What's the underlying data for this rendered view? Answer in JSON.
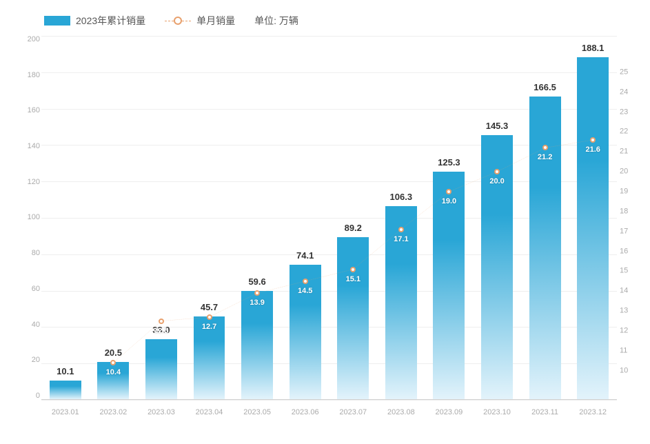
{
  "legend": {
    "series_bar_label": "2023年累计销量",
    "series_line_label": "单月销量",
    "unit_label": "单位: 万辆"
  },
  "chart": {
    "type": "bar+line",
    "background_color": "#ffffff",
    "grid_color": "#eeeeee",
    "axis_text_color": "#aaaaaa",
    "axis_fontsize": 11,
    "label_color": "#333333",
    "label_fontsize": 13,
    "bar_gradient_top": "#29a6d6",
    "bar_gradient_bottom": "#e3f3fb",
    "line_color": "#e8a06c",
    "line_dash": "4 4",
    "marker_fill": "#ffffff",
    "marker_stroke": "#e8a06c",
    "marker_radius": 4,
    "point_label_color": "#ffffff",
    "point_label_fontsize": 11,
    "bar_width_ratio": 0.66,
    "left_axis": {
      "min": 0,
      "max": 200,
      "step": 20
    },
    "right_axis": {
      "min": 10,
      "max": 25,
      "step": 1
    },
    "categories": [
      "2023.01",
      "2023.02",
      "2023.03",
      "2023.04",
      "2023.05",
      "2023.06",
      "2023.07",
      "2023.08",
      "2023.09",
      "2023.10",
      "2023.11",
      "2023.12"
    ],
    "bar_values": [
      10.1,
      20.5,
      33.0,
      45.7,
      59.6,
      74.1,
      89.2,
      106.3,
      125.3,
      145.3,
      166.5,
      188.1
    ],
    "bar_value_labels": [
      "10.1",
      "20.5",
      "33.0",
      "45.7",
      "59.6",
      "74.1",
      "89.2",
      "106.3",
      "125.3",
      "145.3",
      "166.5",
      "188.1"
    ],
    "line_values": [
      null,
      10.4,
      12.5,
      12.7,
      13.9,
      14.5,
      15.1,
      17.1,
      19.0,
      20.0,
      21.2,
      21.6
    ],
    "line_value_labels": [
      null,
      "10.4",
      "12.5",
      "12.7",
      "13.9",
      "14.5",
      "15.1",
      "17.1",
      "19.0",
      "20.0",
      "21.2",
      "21.6"
    ]
  }
}
